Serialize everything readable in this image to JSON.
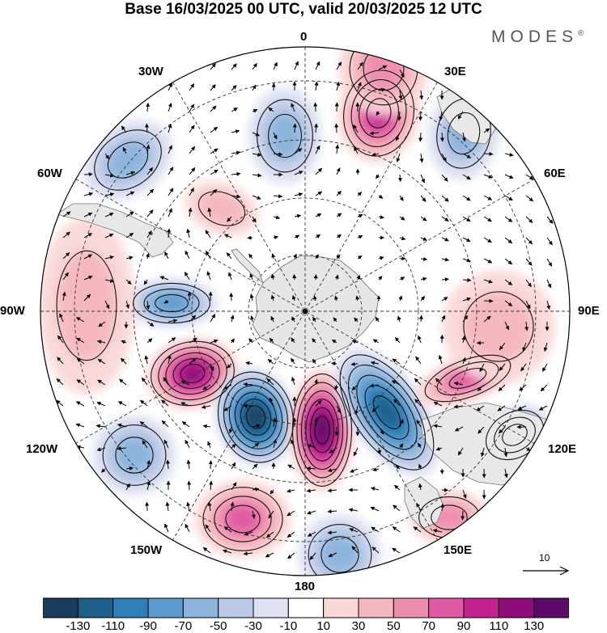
{
  "title": "Base 16/03/2025 00 UTC, valid 20/03/2025 12 UTC",
  "brand": {
    "name": "MODES",
    "mark": "®"
  },
  "longitude_labels": {
    "top": "0",
    "bottom": "180",
    "left": "90W",
    "right": "90E",
    "w30": "30W",
    "e30": "30E",
    "w60": "60W",
    "e60": "60E",
    "w120": "120W",
    "e120": "120E",
    "w150": "150W",
    "e150": "150E"
  },
  "reference_vector": {
    "label": "10"
  },
  "colorbar": {
    "colors": [
      "#1a3f5e",
      "#1f5f8b",
      "#2e7eb8",
      "#5a9cce",
      "#8ab4dc",
      "#b9c8e6",
      "#dde1f1",
      "#ffffff",
      "#f9d7d7",
      "#f4b7bd",
      "#ee8db0",
      "#e05aa3",
      "#c3238f",
      "#8f0d7a",
      "#5c0a6a"
    ],
    "ticks": [
      "-130",
      "-110",
      "-90",
      "-70",
      "-50",
      "-30",
      "-10",
      "10",
      "30",
      "50",
      "70",
      "90",
      "110",
      "130"
    ]
  },
  "anomaly_centers": [
    {
      "sign": "neg",
      "level": 3
    },
    {
      "sign": "neg",
      "level": 3
    },
    {
      "sign": "pos",
      "level": 5
    },
    {
      "sign": "neg",
      "level": 3
    },
    {
      "sign": "pos",
      "level": 2
    },
    {
      "sign": "neg",
      "level": 4
    },
    {
      "sign": "pos",
      "level": 6
    },
    {
      "sign": "neg",
      "level": 7
    },
    {
      "sign": "pos",
      "level": 8
    },
    {
      "sign": "neg",
      "level": 6
    },
    {
      "sign": "pos",
      "level": 4
    },
    {
      "sign": "neg",
      "level": 4
    },
    {
      "sign": "neg",
      "level": 3
    },
    {
      "sign": "pos",
      "level": 4
    },
    {
      "sign": "neg",
      "level": 3
    },
    {
      "sign": "pos",
      "level": 3
    },
    {
      "sign": "pos",
      "level": 2
    },
    {
      "sign": "pos",
      "level": 2
    },
    {
      "sign": "pos",
      "level": 3
    }
  ]
}
